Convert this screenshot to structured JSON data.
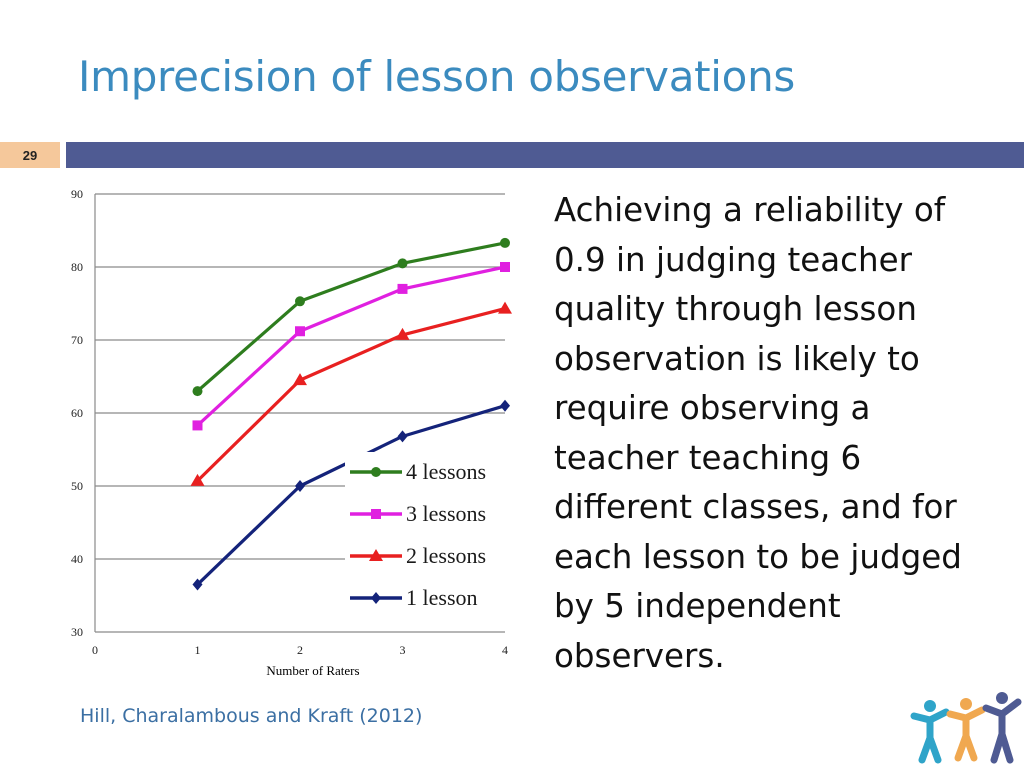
{
  "slide": {
    "title": "Imprecision of lesson observations",
    "number": "29",
    "body": "Achieving a reliability of 0.9 in judging teacher quality through lesson observation is likely to require observing a teacher teaching 6 different classes, and for each lesson to be judged by 5 independent observers.",
    "citation": "Hill, Charalambous and Kraft (2012)"
  },
  "colors": {
    "title": "#3b8bbf",
    "bar": "#4f5b93",
    "slide_num_bg": "#f5c89b",
    "citation": "#3b6fa3"
  },
  "chart_data": {
    "type": "line",
    "title": "",
    "xlabel": "Number of Raters",
    "ylabel": "",
    "xlim": [
      0,
      4
    ],
    "ylim": [
      30,
      90
    ],
    "x_ticks": [
      0,
      1,
      2,
      3,
      4
    ],
    "y_ticks": [
      30,
      40,
      50,
      60,
      70,
      80,
      90
    ],
    "grid": "horizontal",
    "legend_position": "bottom-right",
    "x": [
      1,
      2,
      3,
      4
    ],
    "series": [
      {
        "name": "4 lessons",
        "values": [
          63,
          75.3,
          80.5,
          83.3
        ],
        "color": "#2e7d1e",
        "marker": "circle"
      },
      {
        "name": "3 lessons",
        "values": [
          58.3,
          71.2,
          77,
          80
        ],
        "color": "#e020e0",
        "marker": "square"
      },
      {
        "name": "2 lessons",
        "values": [
          50.7,
          64.5,
          70.7,
          74.3
        ],
        "color": "#e82020",
        "marker": "triangle"
      },
      {
        "name": "1 lesson",
        "values": [
          36.5,
          50,
          56.8,
          61
        ],
        "color": "#14237a",
        "marker": "diamond"
      }
    ]
  }
}
